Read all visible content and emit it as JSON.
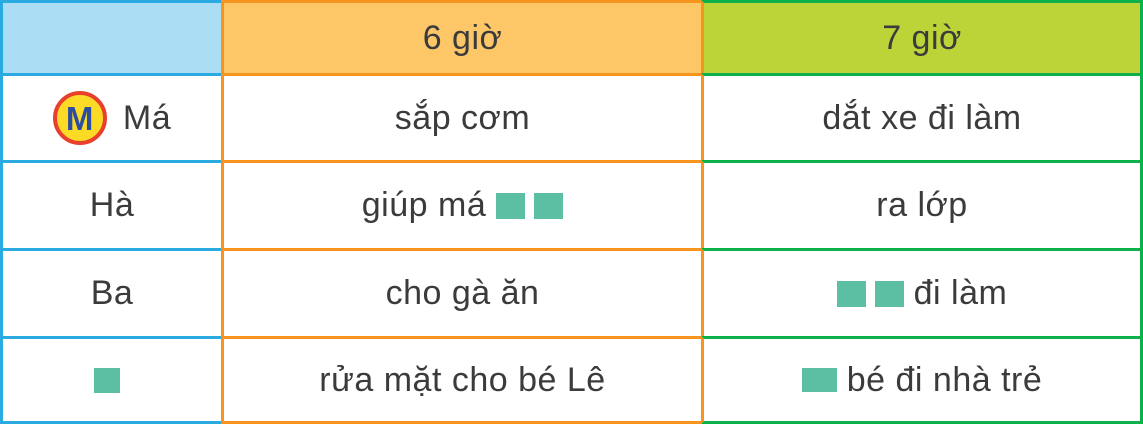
{
  "table_title": "daily-activity-schedule",
  "header": {
    "corner": "",
    "time1": "6 giờ",
    "time2": "7 giờ"
  },
  "rows": [
    {
      "name": "Má",
      "col6": "sắp cơm",
      "col7": "dắt xe đi làm"
    },
    {
      "name": "Hà",
      "col6": "giúp má",
      "col7": "ra lớp"
    },
    {
      "name": "Ba",
      "col6": "cho gà ăn",
      "col7": "đi làm"
    },
    {
      "name": "",
      "col6": "rửa mặt cho bé Lê",
      "col7": "bé đi nhà trẻ"
    }
  ],
  "icons": {
    "m_badge_letter": "M",
    "placeholder_square": "teal-square"
  },
  "placeholder_squares": {
    "row_ha_col6_after_text": 2,
    "row_ba_col7_before_text": 2,
    "row4_name_cell": 1,
    "row4_col7_before_text": 1
  },
  "colors": {
    "column1_border": "#29abe2",
    "column1_header_bg": "#abdef5",
    "column2_border": "#f7941e",
    "column2_header_bg": "#fdc768",
    "column3_border": "#0db14b",
    "column3_header_bg": "#bdd438",
    "placeholder_square": "#5cbfa4",
    "text": "#3b3b3d",
    "m_badge_fill": "#fbdb26",
    "m_badge_ring": "#e8402c",
    "m_badge_letter": "#2c4ea0"
  }
}
